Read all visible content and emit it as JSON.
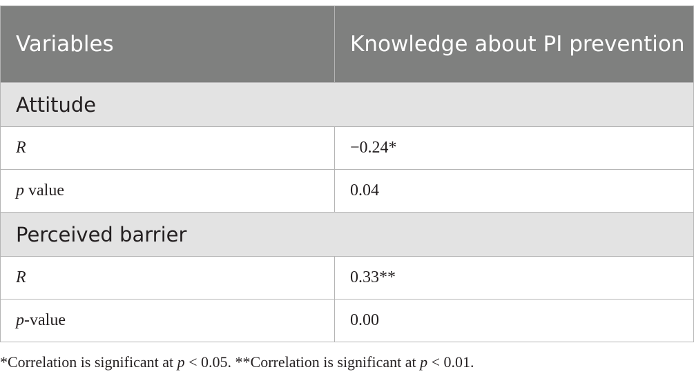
{
  "table": {
    "headers": [
      "Variables",
      "Knowledge about PI prevention"
    ],
    "sections": [
      {
        "label": "Attitude",
        "rows": [
          {
            "var_italic": "R",
            "var_rest": "",
            "value": "−0.24*"
          },
          {
            "var_italic": "p",
            "var_rest": " value",
            "value": "0.04"
          }
        ]
      },
      {
        "label": "Perceived barrier",
        "rows": [
          {
            "var_italic": "R",
            "var_rest": "",
            "value": "0.33**"
          },
          {
            "var_italic": "p",
            "var_rest": "-value",
            "value": "0.00"
          }
        ]
      }
    ]
  },
  "footnote": {
    "part1": "*Correlation is significant at ",
    "p1": "p",
    "part2": " < 0.05. **Correlation is significant at ",
    "p2": "p",
    "part3": " < 0.01."
  }
}
